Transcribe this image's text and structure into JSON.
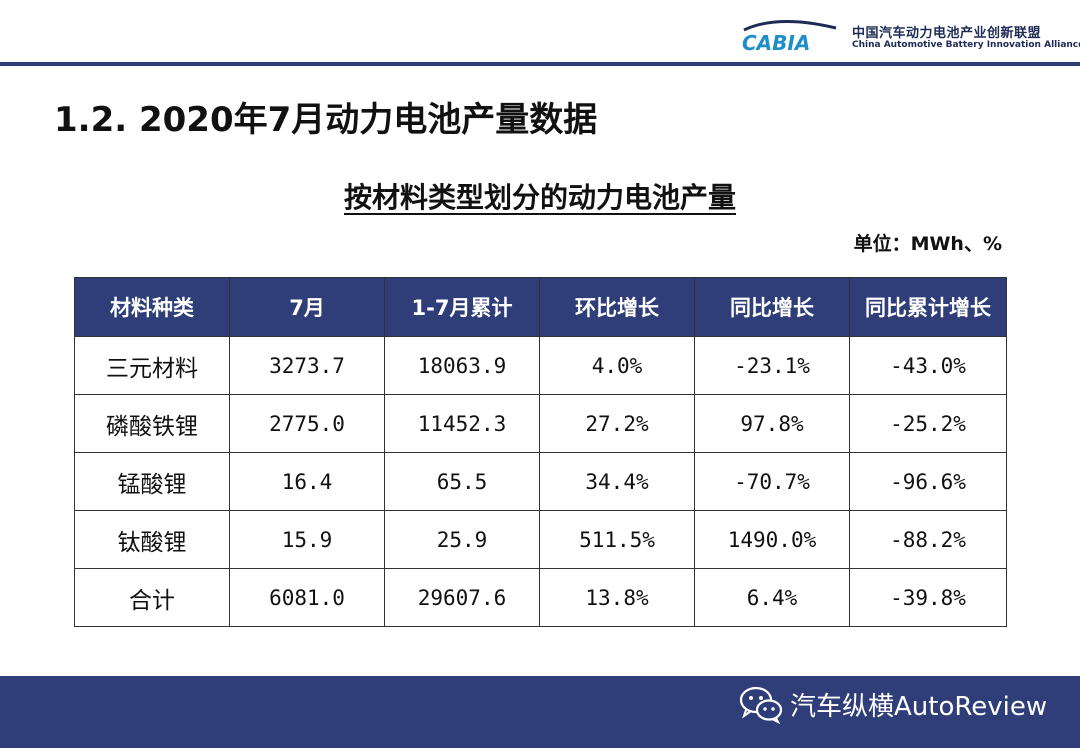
{
  "header": {
    "logo_mark_text": "CABIA",
    "org_cn": "中国汽车动力电池产业创新联盟",
    "org_en": "China Automotive Battery Innovation Alliance"
  },
  "page_title": "1.2. 2020年7月动力电池产量数据",
  "table": {
    "title": "按材料类型划分的动力电池产量",
    "unit": "单位：MWh、%",
    "headers": [
      "材料种类",
      "7月",
      "1-7月累计",
      "环比增长",
      "同比增长",
      "同比累计增长"
    ],
    "rows": [
      [
        "三元材料",
        "3273.7",
        "18063.9",
        "4.0%",
        "-23.1%",
        "-43.0%"
      ],
      [
        "磷酸铁锂",
        "2775.0",
        "11452.3",
        "27.2%",
        "97.8%",
        "-25.2%"
      ],
      [
        "锰酸锂",
        "16.4",
        "65.5",
        "34.4%",
        "-70.7%",
        "-96.6%"
      ],
      [
        "钛酸锂",
        "15.9",
        "25.9",
        "511.5%",
        "1490.0%",
        "-88.2%"
      ],
      [
        "合计",
        "6081.0",
        "29607.6",
        "13.8%",
        "6.4%",
        "-39.8%"
      ]
    ]
  },
  "footer": {
    "watermark": "汽车纵横AutoReview",
    "icon": "wechat-icon"
  },
  "colors": {
    "header_fill": "#2f3e78",
    "logo_blue": "#1e8ec9",
    "logo_dark": "#1f2a55"
  }
}
